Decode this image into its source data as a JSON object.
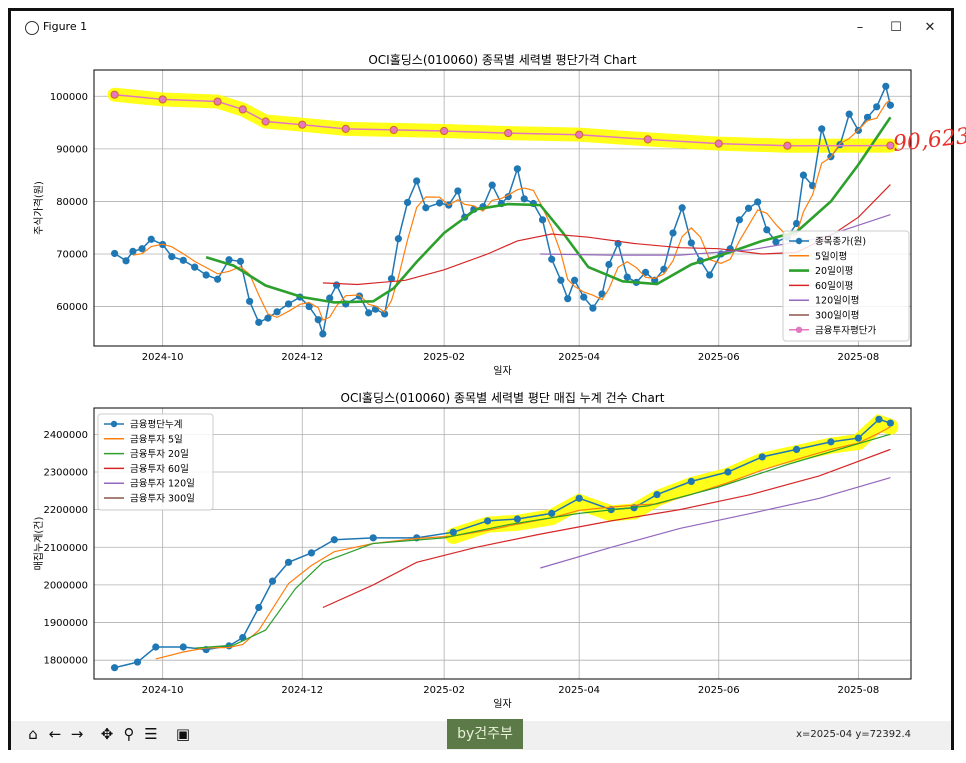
{
  "window": {
    "title": "Figure 1",
    "minimize": "–",
    "maximize": "☐",
    "close": "✕"
  },
  "annotation": "90,623",
  "toolbar": {
    "coords": "x=2025-04 y=72392.4",
    "watermark": "by건주부"
  },
  "chart_data": [
    {
      "type": "line",
      "title": "OCI홀딩스(010060) 종목별 세력별 평단가격 Chart",
      "xlabel": "일자",
      "ylabel": "주식가격(원)",
      "xlim": [
        "2024-09-01",
        "2025-08-24"
      ],
      "ylim": [
        52500,
        105000
      ],
      "xticks": [
        "2024-10",
        "2024-12",
        "2025-02",
        "2025-04",
        "2025-06",
        "2025-08"
      ],
      "yticks": [
        60000,
        70000,
        80000,
        90000,
        100000
      ],
      "grid": true,
      "legend": "right",
      "series": [
        {
          "name": "종목종가(원)",
          "color": "#1f77b4",
          "marker": true,
          "points": [
            [
              "2024-09-10",
              70100
            ],
            [
              "2024-09-15",
              68700
            ],
            [
              "2024-09-18",
              70500
            ],
            [
              "2024-09-22",
              71000
            ],
            [
              "2024-09-26",
              72800
            ],
            [
              "2024-10-01",
              71800
            ],
            [
              "2024-10-05",
              69500
            ],
            [
              "2024-10-10",
              68800
            ],
            [
              "2024-10-15",
              67500
            ],
            [
              "2024-10-20",
              66000
            ],
            [
              "2024-10-25",
              65200
            ],
            [
              "2024-10-30",
              68900
            ],
            [
              "2024-11-04",
              68600
            ],
            [
              "2024-11-08",
              61000
            ],
            [
              "2024-11-12",
              57000
            ],
            [
              "2024-11-16",
              57800
            ],
            [
              "2024-11-20",
              59000
            ],
            [
              "2024-11-25",
              60500
            ],
            [
              "2024-11-30",
              61800
            ],
            [
              "2024-12-04",
              60000
            ],
            [
              "2024-12-08",
              57500
            ],
            [
              "2024-12-10",
              54800
            ],
            [
              "2024-12-13",
              61600
            ],
            [
              "2024-12-16",
              64100
            ],
            [
              "2024-12-20",
              60500
            ],
            [
              "2024-12-26",
              62000
            ],
            [
              "2024-12-30",
              58800
            ],
            [
              "2025-01-02",
              59500
            ],
            [
              "2025-01-06",
              58600
            ],
            [
              "2025-01-09",
              65300
            ],
            [
              "2025-01-12",
              72900
            ],
            [
              "2025-01-16",
              79800
            ],
            [
              "2025-01-20",
              83900
            ],
            [
              "2025-01-24",
              78800
            ],
            [
              "2025-01-30",
              79700
            ],
            [
              "2025-02-03",
              79300
            ],
            [
              "2025-02-07",
              82000
            ],
            [
              "2025-02-10",
              77000
            ],
            [
              "2025-02-14",
              78500
            ],
            [
              "2025-02-18",
              79000
            ],
            [
              "2025-02-22",
              83100
            ],
            [
              "2025-02-26",
              79600
            ],
            [
              "2025-03-01",
              80900
            ],
            [
              "2025-03-05",
              86200
            ],
            [
              "2025-03-08",
              80500
            ],
            [
              "2025-03-12",
              79600
            ],
            [
              "2025-03-16",
              76500
            ],
            [
              "2025-03-20",
              69000
            ],
            [
              "2025-03-24",
              65000
            ],
            [
              "2025-03-27",
              61500
            ],
            [
              "2025-03-30",
              65000
            ],
            [
              "2025-04-03",
              61800
            ],
            [
              "2025-04-07",
              59700
            ],
            [
              "2025-04-11",
              62400
            ],
            [
              "2025-04-14",
              68000
            ],
            [
              "2025-04-18",
              72000
            ],
            [
              "2025-04-22",
              65600
            ],
            [
              "2025-04-26",
              64600
            ],
            [
              "2025-04-30",
              66500
            ],
            [
              "2025-05-04",
              65000
            ],
            [
              "2025-05-08",
              67100
            ],
            [
              "2025-05-12",
              74000
            ],
            [
              "2025-05-16",
              78800
            ],
            [
              "2025-05-20",
              72100
            ],
            [
              "2025-05-24",
              68700
            ],
            [
              "2025-05-28",
              66000
            ],
            [
              "2025-06-02",
              70000
            ],
            [
              "2025-06-06",
              71000
            ],
            [
              "2025-06-10",
              76500
            ],
            [
              "2025-06-14",
              78700
            ],
            [
              "2025-06-18",
              79900
            ],
            [
              "2025-06-22",
              74600
            ],
            [
              "2025-06-26",
              72300
            ],
            [
              "2025-07-01",
              73200
            ],
            [
              "2025-07-05",
              75800
            ],
            [
              "2025-07-08",
              85000
            ],
            [
              "2025-07-12",
              83000
            ],
            [
              "2025-07-16",
              93800
            ],
            [
              "2025-07-20",
              88500
            ],
            [
              "2025-07-24",
              90800
            ],
            [
              "2025-07-28",
              96600
            ],
            [
              "2025-08-01",
              93500
            ],
            [
              "2025-08-05",
              96000
            ],
            [
              "2025-08-09",
              98000
            ],
            [
              "2025-08-13",
              101900
            ],
            [
              "2025-08-15",
              98300
            ]
          ]
        },
        {
          "name": "5일이평",
          "color": "#ff7f0e",
          "marker": false
        },
        {
          "name": "20일이평",
          "color": "#2ca02c",
          "marker": false,
          "points": [
            [
              "2024-10-20",
              69400
            ],
            [
              "2024-11-01",
              67800
            ],
            [
              "2024-11-15",
              64000
            ],
            [
              "2024-12-01",
              61800
            ],
            [
              "2024-12-15",
              60800
            ],
            [
              "2025-01-01",
              61000
            ],
            [
              "2025-01-10",
              63500
            ],
            [
              "2025-01-20",
              68500
            ],
            [
              "2025-02-01",
              74000
            ],
            [
              "2025-02-15",
              78500
            ],
            [
              "2025-03-01",
              79500
            ],
            [
              "2025-03-15",
              79300
            ],
            [
              "2025-03-25",
              74000
            ],
            [
              "2025-04-05",
              67500
            ],
            [
              "2025-04-20",
              64800
            ],
            [
              "2025-05-05",
              64300
            ],
            [
              "2025-05-20",
              68000
            ],
            [
              "2025-06-05",
              70200
            ],
            [
              "2025-06-20",
              72500
            ],
            [
              "2025-07-05",
              74200
            ],
            [
              "2025-07-20",
              80000
            ],
            [
              "2025-08-01",
              87000
            ],
            [
              "2025-08-15",
              96000
            ]
          ]
        },
        {
          "name": "60일이평",
          "color": "#d62728",
          "marker": false,
          "points": [
            [
              "2024-12-10",
              64500
            ],
            [
              "2024-12-25",
              64200
            ],
            [
              "2025-01-15",
              65000
            ],
            [
              "2025-02-01",
              67000
            ],
            [
              "2025-02-20",
              70000
            ],
            [
              "2025-03-05",
              72500
            ],
            [
              "2025-03-20",
              73800
            ],
            [
              "2025-04-05",
              73200
            ],
            [
              "2025-04-25",
              72000
            ],
            [
              "2025-05-15",
              71200
            ],
            [
              "2025-06-01",
              71000
            ],
            [
              "2025-06-20",
              70000
            ],
            [
              "2025-07-05",
              70300
            ],
            [
              "2025-07-20",
              73500
            ],
            [
              "2025-08-01",
              77000
            ],
            [
              "2025-08-15",
              83200
            ]
          ]
        },
        {
          "name": "120일이평",
          "color": "#9467bd",
          "marker": false,
          "points": [
            [
              "2025-03-15",
              70000
            ],
            [
              "2025-04-15",
              69800
            ],
            [
              "2025-05-15",
              69800
            ],
            [
              "2025-06-15",
              70800
            ],
            [
              "2025-07-15",
              73000
            ],
            [
              "2025-08-15",
              77500
            ]
          ]
        },
        {
          "name": "300일이평",
          "color": "#8c564b",
          "marker": false
        },
        {
          "name": "금융투자평단가",
          "color": "#e377c2",
          "marker": true,
          "points": [
            [
              "2024-09-10",
              100300
            ],
            [
              "2024-10-01",
              99400
            ],
            [
              "2024-10-25",
              99000
            ],
            [
              "2024-11-05",
              97500
            ],
            [
              "2024-11-15",
              95200
            ],
            [
              "2024-12-01",
              94600
            ],
            [
              "2024-12-20",
              93800
            ],
            [
              "2025-01-10",
              93600
            ],
            [
              "2025-02-01",
              93400
            ],
            [
              "2025-03-01",
              93000
            ],
            [
              "2025-04-01",
              92700
            ],
            [
              "2025-05-01",
              91800
            ],
            [
              "2025-06-01",
              91000
            ],
            [
              "2025-07-01",
              90600
            ],
            [
              "2025-08-15",
              90623
            ]
          ]
        }
      ]
    },
    {
      "type": "line",
      "title": "OCI홀딩스(010060) 종목별 세력별 평단 매집 누계 건수 Chart",
      "xlabel": "일자",
      "ylabel": "매집누계(건)",
      "xlim": [
        "2024-09-01",
        "2025-08-24"
      ],
      "ylim": [
        1750000,
        2470000
      ],
      "xticks": [
        "2024-10",
        "2024-12",
        "2025-02",
        "2025-04",
        "2025-06",
        "2025-08"
      ],
      "yticks": [
        1800000,
        1900000,
        2000000,
        2100000,
        2200000,
        2300000,
        2400000
      ],
      "grid": true,
      "legend": "upper-left",
      "series": [
        {
          "name": "금융평단누계",
          "color": "#1f77b4",
          "marker": true,
          "points": [
            [
              "2024-09-10",
              1780000
            ],
            [
              "2024-09-20",
              1795000
            ],
            [
              "2024-09-28",
              1835000
            ],
            [
              "2024-10-10",
              1835000
            ],
            [
              "2024-10-20",
              1828000
            ],
            [
              "2024-10-30",
              1838000
            ],
            [
              "2024-11-05",
              1860000
            ],
            [
              "2024-11-12",
              1940000
            ],
            [
              "2024-11-18",
              2010000
            ],
            [
              "2024-11-25",
              2060000
            ],
            [
              "2024-12-05",
              2085000
            ],
            [
              "2024-12-15",
              2120000
            ],
            [
              "2025-01-01",
              2125000
            ],
            [
              "2025-01-20",
              2125000
            ],
            [
              "2025-02-05",
              2140000
            ],
            [
              "2025-02-20",
              2170000
            ],
            [
              "2025-03-05",
              2175000
            ],
            [
              "2025-03-20",
              2190000
            ],
            [
              "2025-04-01",
              2230000
            ],
            [
              "2025-04-15",
              2200000
            ],
            [
              "2025-04-25",
              2205000
            ],
            [
              "2025-05-05",
              2240000
            ],
            [
              "2025-05-20",
              2275000
            ],
            [
              "2025-06-05",
              2300000
            ],
            [
              "2025-06-20",
              2340000
            ],
            [
              "2025-07-05",
              2360000
            ],
            [
              "2025-07-20",
              2380000
            ],
            [
              "2025-08-01",
              2390000
            ],
            [
              "2025-08-10",
              2440000
            ],
            [
              "2025-08-15",
              2430000
            ]
          ]
        },
        {
          "name": "금융투자 5일",
          "color": "#ff7f0e",
          "marker": false
        },
        {
          "name": "금융투자 20일",
          "color": "#2ca02c",
          "marker": false,
          "points": [
            [
              "2024-10-15",
              1832000
            ],
            [
              "2024-11-01",
              1840000
            ],
            [
              "2024-11-15",
              1880000
            ],
            [
              "2024-11-28",
              1990000
            ],
            [
              "2024-12-10",
              2060000
            ],
            [
              "2025-01-01",
              2110000
            ],
            [
              "2025-02-01",
              2125000
            ],
            [
              "2025-03-01",
              2160000
            ],
            [
              "2025-04-01",
              2190000
            ],
            [
              "2025-05-01",
              2210000
            ],
            [
              "2025-06-01",
              2260000
            ],
            [
              "2025-07-01",
              2320000
            ],
            [
              "2025-08-15",
              2400000
            ]
          ]
        },
        {
          "name": "금융투자 60일",
          "color": "#d62728",
          "marker": false,
          "points": [
            [
              "2024-12-10",
              1940000
            ],
            [
              "2025-01-01",
              2000000
            ],
            [
              "2025-01-20",
              2060000
            ],
            [
              "2025-02-15",
              2100000
            ],
            [
              "2025-03-15",
              2135000
            ],
            [
              "2025-04-15",
              2170000
            ],
            [
              "2025-05-15",
              2200000
            ],
            [
              "2025-06-15",
              2240000
            ],
            [
              "2025-07-15",
              2290000
            ],
            [
              "2025-08-15",
              2360000
            ]
          ]
        },
        {
          "name": "금융투자 120일",
          "color": "#9467bd",
          "marker": false,
          "points": [
            [
              "2025-03-15",
              2045000
            ],
            [
              "2025-04-15",
              2100000
            ],
            [
              "2025-05-15",
              2150000
            ],
            [
              "2025-06-15",
              2190000
            ],
            [
              "2025-07-15",
              2230000
            ],
            [
              "2025-08-15",
              2285000
            ]
          ]
        },
        {
          "name": "금융투자 300일",
          "color": "#8c564b",
          "marker": false
        }
      ]
    }
  ]
}
